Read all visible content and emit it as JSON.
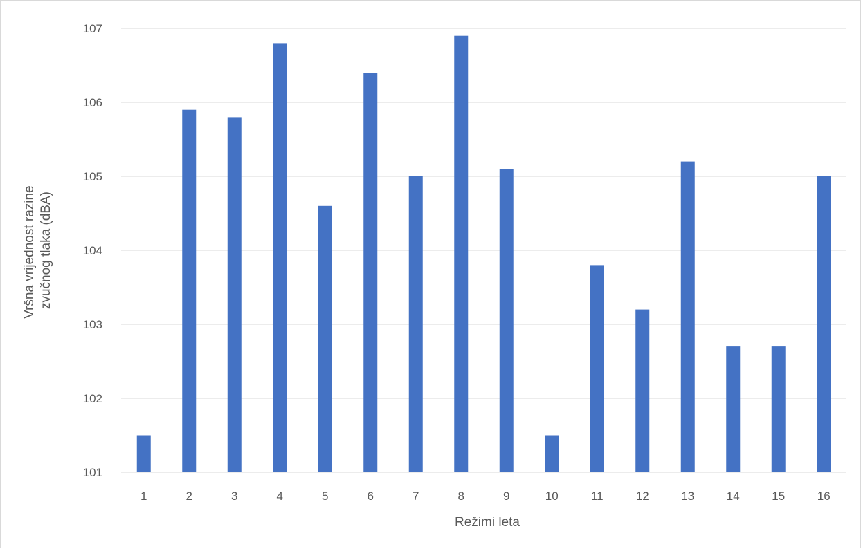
{
  "chart_data": {
    "type": "bar",
    "title": "",
    "xlabel": "Režimi leta",
    "ylabel_lines": [
      "Vršna vrijednost razine",
      "zvučnog tlaka (dBA)"
    ],
    "categories": [
      "1",
      "2",
      "3",
      "4",
      "5",
      "6",
      "7",
      "8",
      "9",
      "10",
      "11",
      "12",
      "13",
      "14",
      "15",
      "16"
    ],
    "values": [
      101.5,
      105.9,
      105.8,
      106.8,
      104.6,
      106.4,
      105.0,
      106.9,
      105.1,
      101.5,
      103.8,
      103.2,
      105.2,
      102.7,
      102.7,
      105.0
    ],
    "ylim": [
      101,
      107
    ],
    "yticks": [
      "101",
      "102",
      "103",
      "104",
      "105",
      "106",
      "107"
    ],
    "grid": true,
    "legend": "none",
    "colors": {
      "bar": "#4472c4",
      "grid": "#d9d9d9",
      "text": "#595959"
    }
  }
}
